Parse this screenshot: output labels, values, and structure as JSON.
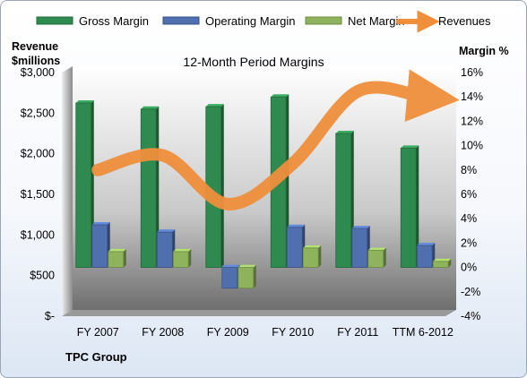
{
  "chart_data": {
    "type": "bar",
    "title": "12-Month Period Margins",
    "company": "TPC Group",
    "categories": [
      "FY 2007",
      "FY 2008",
      "FY 2009",
      "FY 2010",
      "FY 2011",
      "TTM 6-2012"
    ],
    "y_left": {
      "label_line1": "Revenue",
      "label_line2": "$millions",
      "range": [
        0,
        3000
      ],
      "ticks": [
        "$3,000",
        "$2,500",
        "$2,000",
        "$1,500",
        "$1,000",
        "$500",
        "$-"
      ]
    },
    "y_right": {
      "label": "Margin %",
      "range": [
        -4,
        16
      ],
      "ticks": [
        "16%",
        "14%",
        "12%",
        "10%",
        "8%",
        "6%",
        "4%",
        "2%",
        "0%",
        "-2%",
        "-4%"
      ]
    },
    "series": [
      {
        "name": "Gross Margin",
        "kind": "bar",
        "axis": "right",
        "color": "#2e8a4e",
        "values": [
          13.5,
          13.0,
          13.2,
          14.0,
          11.0,
          9.8
        ]
      },
      {
        "name": "Operating Margin",
        "kind": "bar",
        "axis": "right",
        "color": "#4f6fae",
        "values": [
          3.5,
          2.9,
          -1.7,
          3.3,
          3.2,
          1.8
        ]
      },
      {
        "name": "Net Margin",
        "kind": "bar",
        "axis": "right",
        "color": "#8fb35c",
        "values": [
          1.3,
          1.3,
          -1.7,
          1.6,
          1.4,
          0.5
        ]
      },
      {
        "name": "Revenues",
        "kind": "line",
        "axis": "left",
        "color": "#ef8f3c",
        "values": [
          1800,
          1980,
          1380,
          1880,
          2770,
          2700
        ]
      }
    ],
    "legend_position": "top",
    "grid": false
  }
}
